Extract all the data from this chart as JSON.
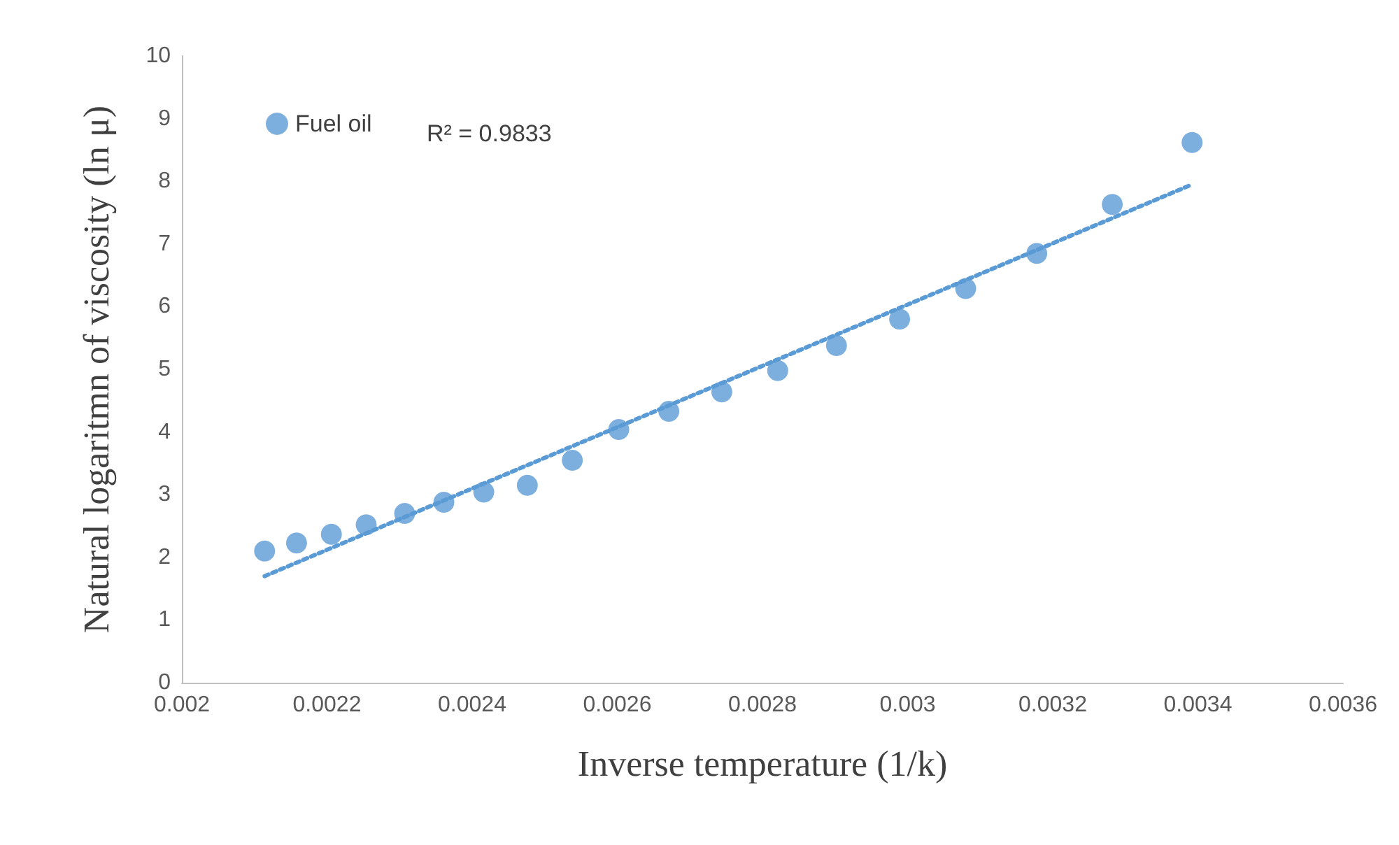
{
  "chart_data": {
    "type": "scatter",
    "xlabel": "Inverse temperature (1/k)",
    "ylabel": "Natural logaritmn of viscosity (ln μ)",
    "xlim": [
      0.002,
      0.0036
    ],
    "xticks": [
      0.002,
      0.0022,
      0.0024,
      0.0026,
      0.0028,
      0.003,
      0.0032,
      0.0034,
      0.0036
    ],
    "ylim": [
      0,
      10
    ],
    "yticks": [
      0,
      1,
      2,
      3,
      4,
      5,
      6,
      7,
      8,
      9,
      10
    ],
    "grid": false,
    "legend": "top left",
    "marker": "circle",
    "annotations": [
      "R² = 0.9833"
    ],
    "series": [
      {
        "name": "Fuel oil",
        "color": "#5b9bd5",
        "x": [
          0.002114,
          0.002158,
          0.002206,
          0.002254,
          0.002307,
          0.002361,
          0.002416,
          0.002476,
          0.002538,
          0.002602,
          0.002671,
          0.002744,
          0.002821,
          0.002902,
          0.002989,
          0.00308,
          0.003178,
          0.003282,
          0.003392
        ],
        "values": [
          2.1,
          2.23,
          2.37,
          2.52,
          2.7,
          2.88,
          3.04,
          3.15,
          3.55,
          4.04,
          4.33,
          4.64,
          4.98,
          5.38,
          5.8,
          6.29,
          6.85,
          7.63,
          8.62
        ]
      },
      {
        "type": "line",
        "color": "#5b9bd5",
        "line_style": "dotted",
        "marker": "none",
        "x": [
          0.002114,
          0.003392
        ],
        "values": [
          1.7,
          7.95
        ]
      }
    ]
  }
}
